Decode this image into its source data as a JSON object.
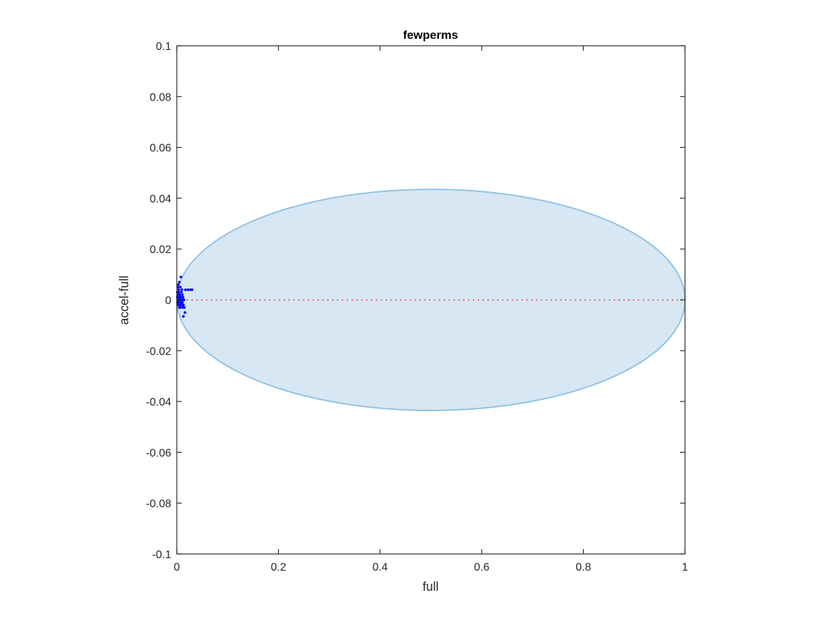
{
  "chart_data": {
    "type": "scatter",
    "title": "fewperms",
    "xlabel": "full",
    "ylabel": "accel-full",
    "xlim": [
      0,
      1
    ],
    "ylim": [
      -0.1,
      0.1
    ],
    "xticks": [
      0,
      0.2,
      0.4,
      0.6,
      0.8,
      1
    ],
    "xtick_labels": [
      "0",
      "0.2",
      "0.4",
      "0.6",
      "0.8",
      "1"
    ],
    "yticks": [
      -0.1,
      -0.08,
      -0.06,
      -0.04,
      -0.02,
      0,
      0.02,
      0.04,
      0.06,
      0.08,
      0.1
    ],
    "ytick_labels": [
      "-0.1",
      "-0.08",
      "-0.06",
      "-0.04",
      "-0.02",
      "0",
      "0.02",
      "0.04",
      "0.06",
      "0.08",
      "0.1"
    ],
    "grid": false,
    "box": true,
    "ellipse": {
      "center": [
        0.5,
        0.0
      ],
      "semi_axis_x": 0.5,
      "semi_axis_y": 0.0435,
      "fill_color": "#d7e7f3",
      "edge_color": "#8fc3e3"
    },
    "reference_line": {
      "y": 0,
      "x_range": [
        0,
        1
      ],
      "color": "#e8382e",
      "style": "dotted"
    },
    "scatter_color": "#0000ff",
    "points": [
      [
        0.001,
        0.001
      ],
      [
        0.001,
        0.003
      ],
      [
        0.0015,
        -0.001
      ],
      [
        0.002,
        0.005
      ],
      [
        0.002,
        -0.002
      ],
      [
        0.003,
        0.002
      ],
      [
        0.003,
        0.0
      ],
      [
        0.003,
        0.006
      ],
      [
        0.004,
        -0.001
      ],
      [
        0.004,
        0.003
      ],
      [
        0.004,
        0.004
      ],
      [
        0.005,
        -0.003
      ],
      [
        0.005,
        0.007
      ],
      [
        0.005,
        0.001
      ],
      [
        0.006,
        0.0
      ],
      [
        0.006,
        0.002
      ],
      [
        0.006,
        -0.002
      ],
      [
        0.007,
        0.005
      ],
      [
        0.007,
        -0.003
      ],
      [
        0.008,
        0.009
      ],
      [
        0.008,
        0.001
      ],
      [
        0.008,
        -0.001
      ],
      [
        0.009,
        0.003
      ],
      [
        0.009,
        -0.002
      ],
      [
        0.01,
        0.0
      ],
      [
        0.01,
        0.004
      ],
      [
        0.011,
        -0.001
      ],
      [
        0.011,
        0.002
      ],
      [
        0.012,
        -0.003
      ],
      [
        0.012,
        0.001
      ],
      [
        0.013,
        -0.0065
      ],
      [
        0.013,
        -0.002
      ],
      [
        0.014,
        0.0
      ],
      [
        0.015,
        -0.003
      ],
      [
        0.016,
        -0.005
      ],
      [
        0.017,
        0.004
      ],
      [
        0.022,
        0.004
      ],
      [
        0.027,
        0.004
      ],
      [
        0.03,
        0.004
      ]
    ]
  }
}
